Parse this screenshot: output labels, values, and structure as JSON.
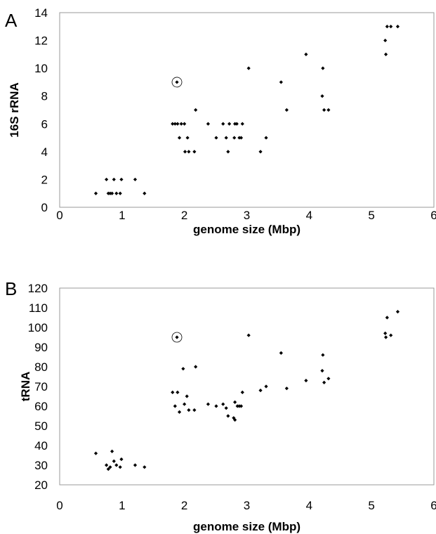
{
  "chart_data": [
    {
      "type": "scatter",
      "panel_label": "A",
      "xlabel": "genome size (Mbp)",
      "ylabel": "16S rRNA",
      "xlim": [
        0,
        6
      ],
      "ylim": [
        0,
        14
      ],
      "xticks": [
        0,
        1,
        2,
        3,
        4,
        5,
        6
      ],
      "yticks": [
        0,
        2,
        4,
        6,
        8,
        10,
        12,
        14
      ],
      "grid": false,
      "marker_color": "#000000",
      "highlighted_point": {
        "x": 1.88,
        "y": 9
      },
      "points": [
        {
          "x": 0.58,
          "y": 1
        },
        {
          "x": 0.75,
          "y": 2
        },
        {
          "x": 0.78,
          "y": 1
        },
        {
          "x": 0.81,
          "y": 1
        },
        {
          "x": 0.84,
          "y": 1
        },
        {
          "x": 0.87,
          "y": 2
        },
        {
          "x": 0.91,
          "y": 1
        },
        {
          "x": 0.97,
          "y": 1
        },
        {
          "x": 0.99,
          "y": 2
        },
        {
          "x": 1.21,
          "y": 2
        },
        {
          "x": 1.36,
          "y": 1
        },
        {
          "x": 1.81,
          "y": 6
        },
        {
          "x": 1.85,
          "y": 6
        },
        {
          "x": 1.88,
          "y": 9
        },
        {
          "x": 1.89,
          "y": 6
        },
        {
          "x": 1.92,
          "y": 5
        },
        {
          "x": 1.95,
          "y": 6
        },
        {
          "x": 2.0,
          "y": 6
        },
        {
          "x": 2.01,
          "y": 4
        },
        {
          "x": 2.05,
          "y": 5
        },
        {
          "x": 2.07,
          "y": 4
        },
        {
          "x": 2.16,
          "y": 4
        },
        {
          "x": 2.18,
          "y": 7
        },
        {
          "x": 2.38,
          "y": 6
        },
        {
          "x": 2.51,
          "y": 5
        },
        {
          "x": 2.62,
          "y": 6
        },
        {
          "x": 2.67,
          "y": 5
        },
        {
          "x": 2.7,
          "y": 4
        },
        {
          "x": 2.72,
          "y": 6
        },
        {
          "x": 2.8,
          "y": 5
        },
        {
          "x": 2.81,
          "y": 6
        },
        {
          "x": 2.84,
          "y": 6
        },
        {
          "x": 2.88,
          "y": 5
        },
        {
          "x": 2.91,
          "y": 5
        },
        {
          "x": 2.93,
          "y": 6
        },
        {
          "x": 3.03,
          "y": 10
        },
        {
          "x": 3.22,
          "y": 4
        },
        {
          "x": 3.31,
          "y": 5
        },
        {
          "x": 3.55,
          "y": 9
        },
        {
          "x": 3.64,
          "y": 7
        },
        {
          "x": 3.95,
          "y": 11
        },
        {
          "x": 4.21,
          "y": 8
        },
        {
          "x": 4.22,
          "y": 10
        },
        {
          "x": 4.24,
          "y": 7
        },
        {
          "x": 4.31,
          "y": 7
        },
        {
          "x": 5.22,
          "y": 12
        },
        {
          "x": 5.23,
          "y": 11
        },
        {
          "x": 5.25,
          "y": 13
        },
        {
          "x": 5.31,
          "y": 13
        },
        {
          "x": 5.42,
          "y": 13
        }
      ]
    },
    {
      "type": "scatter",
      "panel_label": "B",
      "xlabel": "genome size (Mbp)",
      "ylabel": "tRNA",
      "xlim": [
        0,
        6
      ],
      "ylim": [
        20,
        120
      ],
      "xticks": [
        0,
        1,
        2,
        3,
        4,
        5,
        6
      ],
      "yticks": [
        20,
        30,
        40,
        50,
        60,
        70,
        80,
        90,
        100,
        110,
        120
      ],
      "grid": false,
      "marker_color": "#000000",
      "highlighted_point": {
        "x": 1.88,
        "y": 95
      },
      "points": [
        {
          "x": 0.58,
          "y": 36
        },
        {
          "x": 0.75,
          "y": 30
        },
        {
          "x": 0.78,
          "y": 28
        },
        {
          "x": 0.81,
          "y": 29
        },
        {
          "x": 0.84,
          "y": 37
        },
        {
          "x": 0.87,
          "y": 32
        },
        {
          "x": 0.91,
          "y": 30
        },
        {
          "x": 0.97,
          "y": 29
        },
        {
          "x": 0.99,
          "y": 33
        },
        {
          "x": 1.21,
          "y": 30
        },
        {
          "x": 1.36,
          "y": 29
        },
        {
          "x": 1.81,
          "y": 67
        },
        {
          "x": 1.85,
          "y": 60
        },
        {
          "x": 1.88,
          "y": 95
        },
        {
          "x": 1.89,
          "y": 67
        },
        {
          "x": 1.92,
          "y": 57
        },
        {
          "x": 1.98,
          "y": 79
        },
        {
          "x": 2.0,
          "y": 61
        },
        {
          "x": 2.04,
          "y": 65
        },
        {
          "x": 2.07,
          "y": 58
        },
        {
          "x": 2.16,
          "y": 58
        },
        {
          "x": 2.18,
          "y": 80
        },
        {
          "x": 2.38,
          "y": 61
        },
        {
          "x": 2.51,
          "y": 60
        },
        {
          "x": 2.62,
          "y": 61
        },
        {
          "x": 2.67,
          "y": 59
        },
        {
          "x": 2.7,
          "y": 55
        },
        {
          "x": 2.79,
          "y": 54
        },
        {
          "x": 2.81,
          "y": 62
        },
        {
          "x": 2.81,
          "y": 53
        },
        {
          "x": 2.85,
          "y": 60
        },
        {
          "x": 2.88,
          "y": 60
        },
        {
          "x": 2.91,
          "y": 60
        },
        {
          "x": 2.93,
          "y": 67
        },
        {
          "x": 3.03,
          "y": 96
        },
        {
          "x": 3.22,
          "y": 68
        },
        {
          "x": 3.31,
          "y": 70
        },
        {
          "x": 3.55,
          "y": 87
        },
        {
          "x": 3.64,
          "y": 69
        },
        {
          "x": 3.95,
          "y": 73
        },
        {
          "x": 4.21,
          "y": 78
        },
        {
          "x": 4.22,
          "y": 86
        },
        {
          "x": 4.24,
          "y": 72
        },
        {
          "x": 4.31,
          "y": 74
        },
        {
          "x": 5.22,
          "y": 97
        },
        {
          "x": 5.23,
          "y": 95
        },
        {
          "x": 5.25,
          "y": 105
        },
        {
          "x": 5.31,
          "y": 96
        },
        {
          "x": 5.42,
          "y": 108
        }
      ]
    }
  ]
}
